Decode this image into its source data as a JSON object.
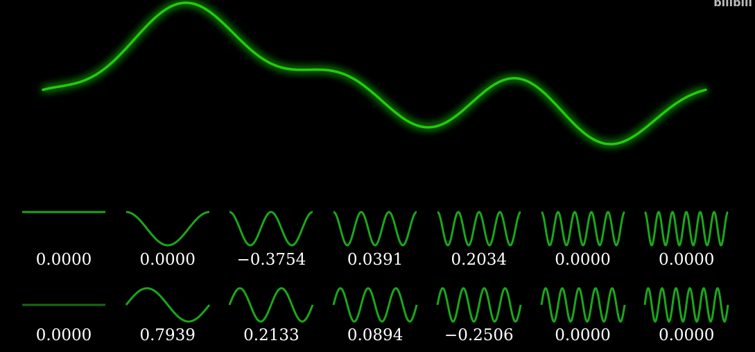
{
  "watermark": "bilibili",
  "colors": {
    "curve": "#22cc11",
    "component": "#1aa81a",
    "component_dim": "#146b14",
    "background": "#000000",
    "text": "#ffffff"
  },
  "chart_data": {
    "type": "line",
    "description_series": "sum of cosine and sine components",
    "x_range": [
      0,
      6.2832
    ],
    "cos_coefficients": [
      0.0,
      0.0,
      -0.3754,
      0.0391,
      0.2034,
      0.0,
      0.0
    ],
    "sin_coefficients": [
      0.0,
      0.7939,
      0.2133,
      0.0894,
      -0.2506,
      0.0,
      0.0
    ],
    "cos_labels": [
      "0.0000",
      "0.0000",
      "−0.3754",
      "0.0391",
      "0.2034",
      "0.0000",
      "0.0000"
    ],
    "sin_labels": [
      "0.0000",
      "0.7939",
      "0.2133",
      "0.0894",
      "−0.2506",
      "0.0000",
      "0.0000"
    ],
    "grid": false
  }
}
